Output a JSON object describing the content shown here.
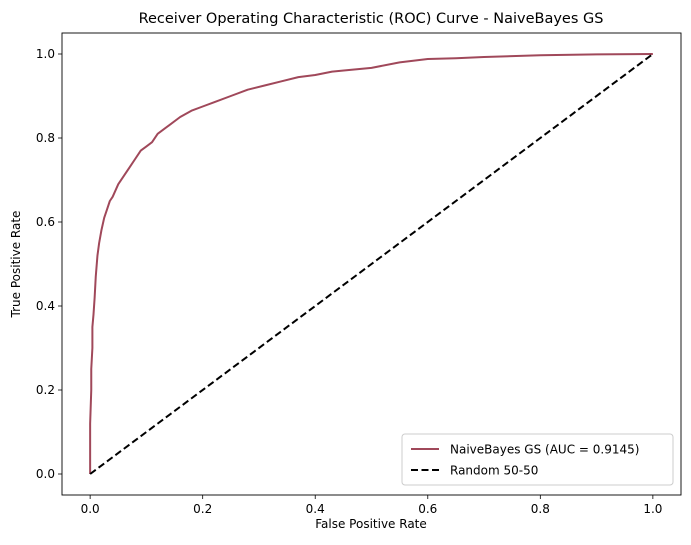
{
  "chart_data": {
    "type": "line",
    "title": "Receiver Operating Characteristic (ROC) Curve - NaiveBayes GS",
    "xlabel": "False Positive Rate",
    "ylabel": "True Positive Rate",
    "xlim": [
      -0.05,
      1.05
    ],
    "ylim": [
      -0.05,
      1.05
    ],
    "xticks": [
      "0.0",
      "0.2",
      "0.4",
      "0.6",
      "0.8",
      "1.0"
    ],
    "yticks": [
      "0.0",
      "0.2",
      "0.4",
      "0.6",
      "0.8",
      "1.0"
    ],
    "grid": false,
    "legend_position": "lower-right",
    "series": [
      {
        "name": "NaiveBayes GS (AUC = 0.9145)",
        "color": "#a0485a",
        "style": "solid",
        "x": [
          0.0,
          0.0,
          0.002,
          0.002,
          0.004,
          0.004,
          0.006,
          0.008,
          0.01,
          0.013,
          0.016,
          0.02,
          0.025,
          0.03,
          0.035,
          0.04,
          0.05,
          0.06,
          0.07,
          0.08,
          0.09,
          0.1,
          0.11,
          0.12,
          0.14,
          0.16,
          0.18,
          0.2,
          0.22,
          0.25,
          0.28,
          0.31,
          0.34,
          0.37,
          0.4,
          0.43,
          0.46,
          0.5,
          0.55,
          0.6,
          0.65,
          0.7,
          0.8,
          0.9,
          1.0
        ],
        "y": [
          0.0,
          0.12,
          0.2,
          0.25,
          0.3,
          0.35,
          0.38,
          0.42,
          0.47,
          0.52,
          0.55,
          0.58,
          0.61,
          0.63,
          0.65,
          0.66,
          0.69,
          0.71,
          0.73,
          0.75,
          0.77,
          0.78,
          0.79,
          0.81,
          0.83,
          0.85,
          0.865,
          0.875,
          0.885,
          0.9,
          0.915,
          0.925,
          0.935,
          0.945,
          0.95,
          0.958,
          0.962,
          0.967,
          0.98,
          0.988,
          0.99,
          0.993,
          0.997,
          0.999,
          1.0
        ]
      },
      {
        "name": "Random 50-50",
        "color": "#000000",
        "style": "dashed",
        "x": [
          0.0,
          1.0
        ],
        "y": [
          0.0,
          1.0
        ]
      }
    ]
  }
}
